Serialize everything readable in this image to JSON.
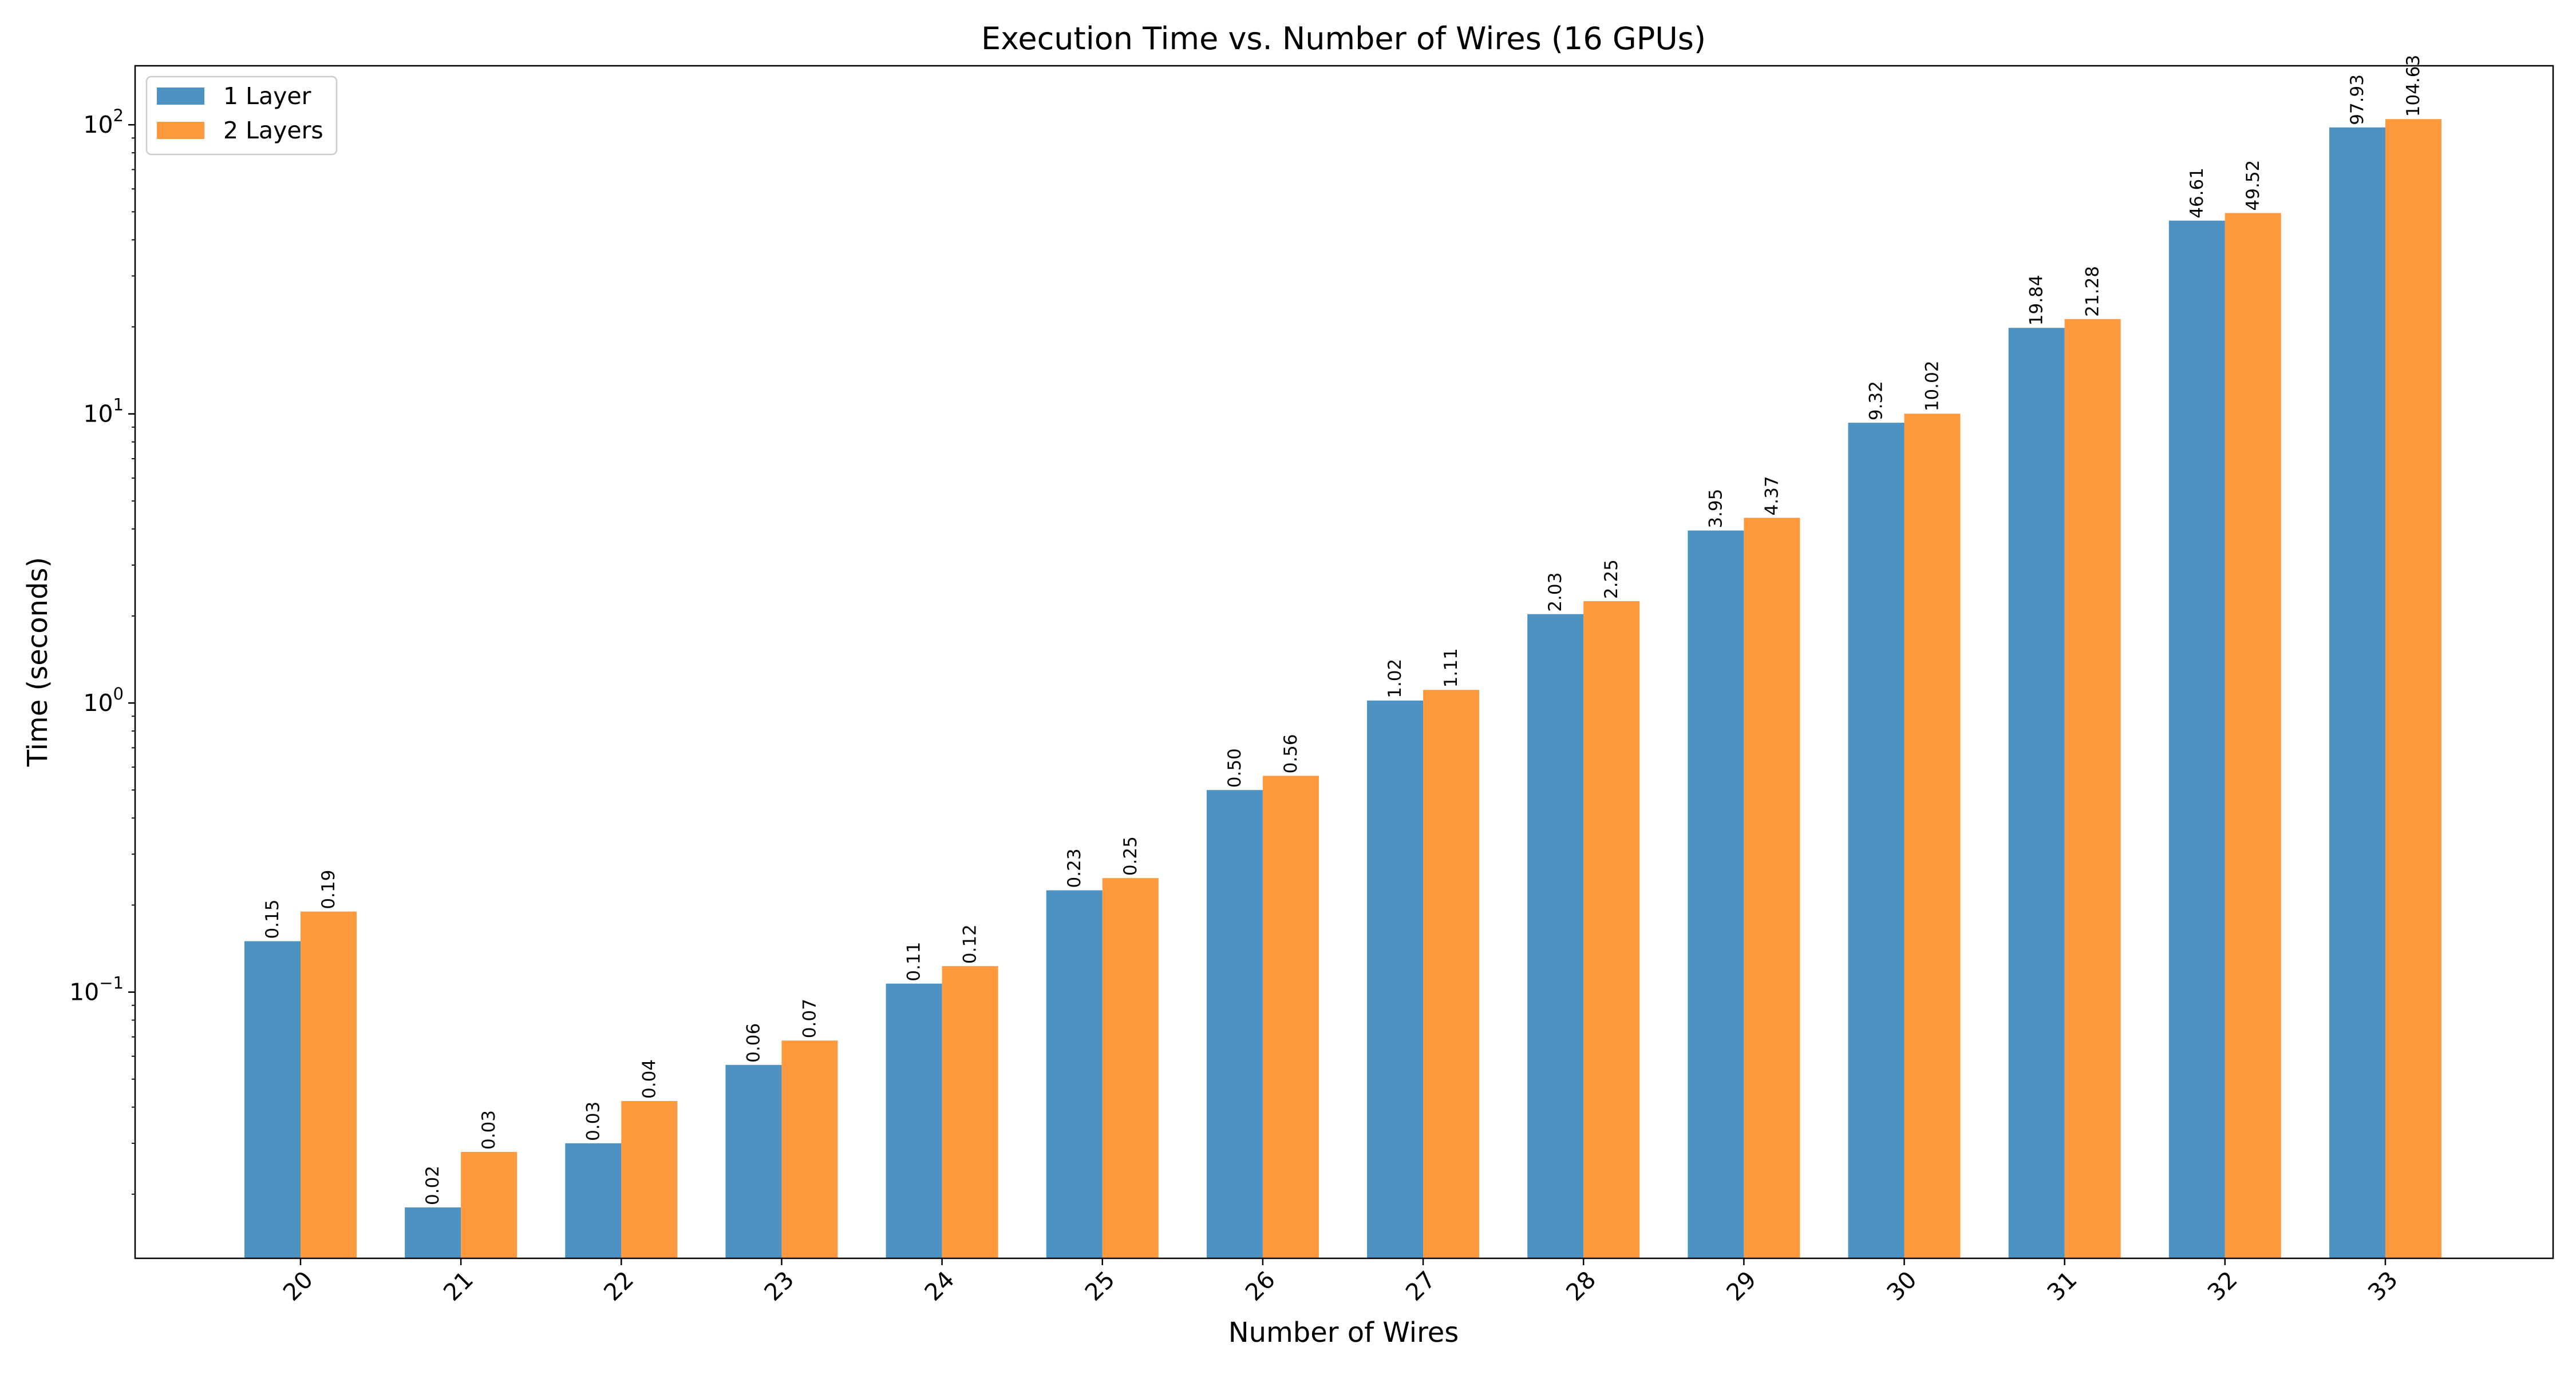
{
  "chart_data": {
    "type": "bar",
    "title": "Execution Time vs. Number of Wires (16 GPUs)",
    "xlabel": "Number of Wires",
    "ylabel": "Time (seconds)",
    "yscale": "log",
    "ylim": [
      0.012,
      160
    ],
    "yticks": [
      {
        "base": "10",
        "exp": "−1",
        "value": 0.1
      },
      {
        "base": "10",
        "exp": "0",
        "value": 1
      },
      {
        "base": "10",
        "exp": "1",
        "value": 10
      },
      {
        "base": "10",
        "exp": "2",
        "value": 100
      }
    ],
    "categories": [
      "20",
      "21",
      "22",
      "23",
      "24",
      "25",
      "26",
      "27",
      "28",
      "29",
      "30",
      "31",
      "32",
      "33"
    ],
    "series": [
      {
        "name": "1 Layer",
        "color": "#4c92c3",
        "values": [
          0.15,
          0.018,
          0.03,
          0.056,
          0.107,
          0.225,
          0.5,
          1.02,
          2.03,
          3.95,
          9.32,
          19.84,
          46.61,
          97.93
        ],
        "labels": [
          "0.15",
          "0.02",
          "0.03",
          "0.06",
          "0.11",
          "0.23",
          "0.50",
          "1.02",
          "2.03",
          "3.95",
          "9.32",
          "19.84",
          "46.61",
          "97.93"
        ]
      },
      {
        "name": "2 Layers",
        "color": "#ff993e",
        "values": [
          0.19,
          0.028,
          0.042,
          0.068,
          0.123,
          0.248,
          0.56,
          1.11,
          2.25,
          4.37,
          10.02,
          21.28,
          49.52,
          104.63
        ],
        "labels": [
          "0.19",
          "0.03",
          "0.04",
          "0.07",
          "0.12",
          "0.25",
          "0.56",
          "1.11",
          "2.25",
          "4.37",
          "10.02",
          "21.28",
          "49.52",
          "104.63"
        ]
      }
    ],
    "grid": false,
    "legend_position": "top-left"
  }
}
